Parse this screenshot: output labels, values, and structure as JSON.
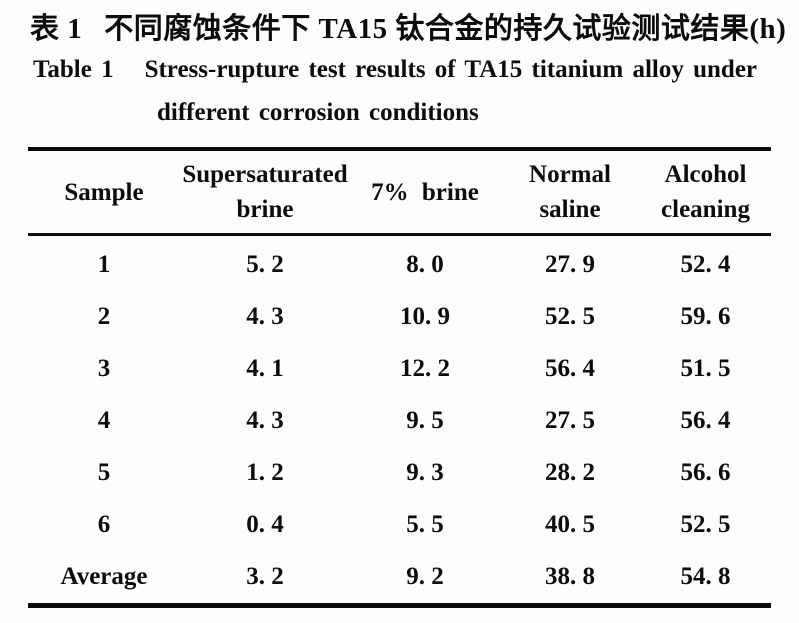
{
  "page": {
    "background": "#fdfdfc",
    "ink": "#0c0c0c"
  },
  "title": {
    "zh_label": "表 1",
    "zh_text": "不同腐蚀条件下 TA15 钛合金的持久试验测试结果(h)",
    "en_label": "Table 1",
    "en_text": "Stress-rupture test results of TA15 titanium alloy under",
    "en_line2": "different corrosion conditions"
  },
  "table": {
    "headers": [
      {
        "text": "Sample",
        "lines": [
          "Sample",
          ""
        ]
      },
      {
        "text": "Supersaturated brine",
        "lines": [
          "Supersaturated",
          "brine"
        ]
      },
      {
        "text": "7% brine",
        "lines": [
          "7% brine",
          ""
        ]
      },
      {
        "text": "Normal saline",
        "lines": [
          "Normal",
          "saline"
        ]
      },
      {
        "text": "Alcohol cleaning",
        "lines": [
          "Alcohol",
          "cleaning"
        ]
      }
    ],
    "rows": [
      {
        "label": "1",
        "cells": [
          "5. 2",
          "8. 0",
          "27. 9",
          "52. 4"
        ]
      },
      {
        "label": "2",
        "cells": [
          "4. 3",
          "10. 9",
          "52. 5",
          "59. 6"
        ]
      },
      {
        "label": "3",
        "cells": [
          "4. 1",
          "12. 2",
          "56. 4",
          "51. 5"
        ]
      },
      {
        "label": "4",
        "cells": [
          "4. 3",
          "9. 5",
          "27. 5",
          "56. 4"
        ]
      },
      {
        "label": "5",
        "cells": [
          "1. 2",
          "9. 3",
          "28. 2",
          "56. 6"
        ]
      },
      {
        "label": "6",
        "cells": [
          "0. 4",
          "5. 5",
          "40. 5",
          "52. 5"
        ]
      },
      {
        "label": "Average",
        "cells": [
          "3. 2",
          "9. 2",
          "38. 8",
          "54. 8"
        ]
      }
    ]
  }
}
